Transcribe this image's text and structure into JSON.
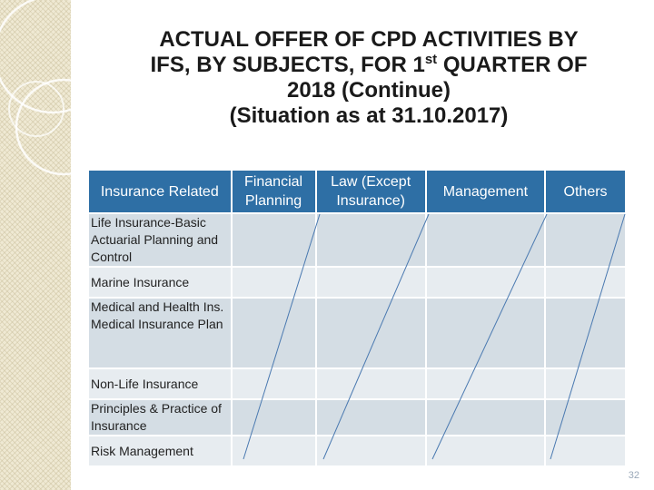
{
  "title": {
    "line1": "ACTUAL OFFER OF CPD ACTIVITIES BY",
    "line2_before": "IFS, BY SUBJECTS, FOR 1",
    "line2_sup": "st",
    "line2_after": " QUARTER OF",
    "line3": "2018 (Continue)",
    "line4": "(Situation as at 31.10.2017)"
  },
  "table": {
    "headers": [
      {
        "label": "Insurance Related"
      },
      {
        "label": "Financial Planning"
      },
      {
        "label": "Law (Except Insurance)"
      },
      {
        "label": "Management"
      },
      {
        "label": "Others"
      }
    ],
    "rows": [
      {
        "label": "Life Insurance-Basic Actuarial Planning and Control"
      },
      {
        "label": "Marine Insurance"
      },
      {
        "label": "Medical and Health Ins. Medical Insurance Plan"
      },
      {
        "label": "Non-Life Insurance"
      },
      {
        "label": "Principles & Practice of Insurance"
      },
      {
        "label": "Risk Management"
      }
    ]
  },
  "page_number": "32",
  "colors": {
    "header_bg": "#2e6fa5",
    "row_dark": "#d4dde4",
    "row_light": "#e7ecf0"
  }
}
